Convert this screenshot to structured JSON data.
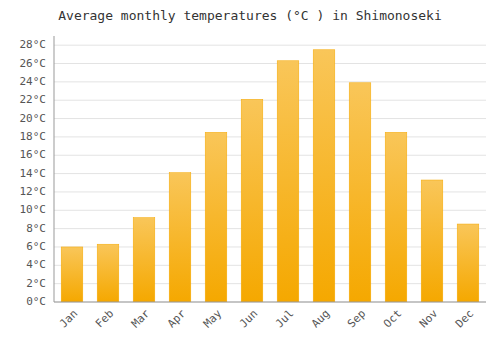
{
  "chart_data": {
    "type": "bar",
    "title": "Average monthly temperatures (°C ) in Shimonoseki",
    "categories": [
      "Jan",
      "Feb",
      "Mar",
      "Apr",
      "May",
      "Jun",
      "Jul",
      "Aug",
      "Sep",
      "Oct",
      "Nov",
      "Dec"
    ],
    "values": [
      6.0,
      6.3,
      9.2,
      14.1,
      18.5,
      22.1,
      26.3,
      27.5,
      23.9,
      18.5,
      13.3,
      8.5
    ],
    "color": "#F5A800",
    "ylim": [
      0,
      29
    ],
    "yticks": [
      {
        "value": 0,
        "label": "0°C"
      },
      {
        "value": 2,
        "label": "2°C"
      },
      {
        "value": 4,
        "label": "4°C"
      },
      {
        "value": 6,
        "label": "6°C"
      },
      {
        "value": 8,
        "label": "8°C"
      },
      {
        "value": 10,
        "label": "10°C"
      },
      {
        "value": 12,
        "label": "12°C"
      },
      {
        "value": 14,
        "label": "14°C"
      },
      {
        "value": 16,
        "label": "16°C"
      },
      {
        "value": 18,
        "label": "18°C"
      },
      {
        "value": 20,
        "label": "20°C"
      },
      {
        "value": 22,
        "label": "22°C"
      },
      {
        "value": 24,
        "label": "24°C"
      },
      {
        "value": 26,
        "label": "26°C"
      },
      {
        "value": 28,
        "label": "28°C"
      }
    ],
    "grid": true
  }
}
